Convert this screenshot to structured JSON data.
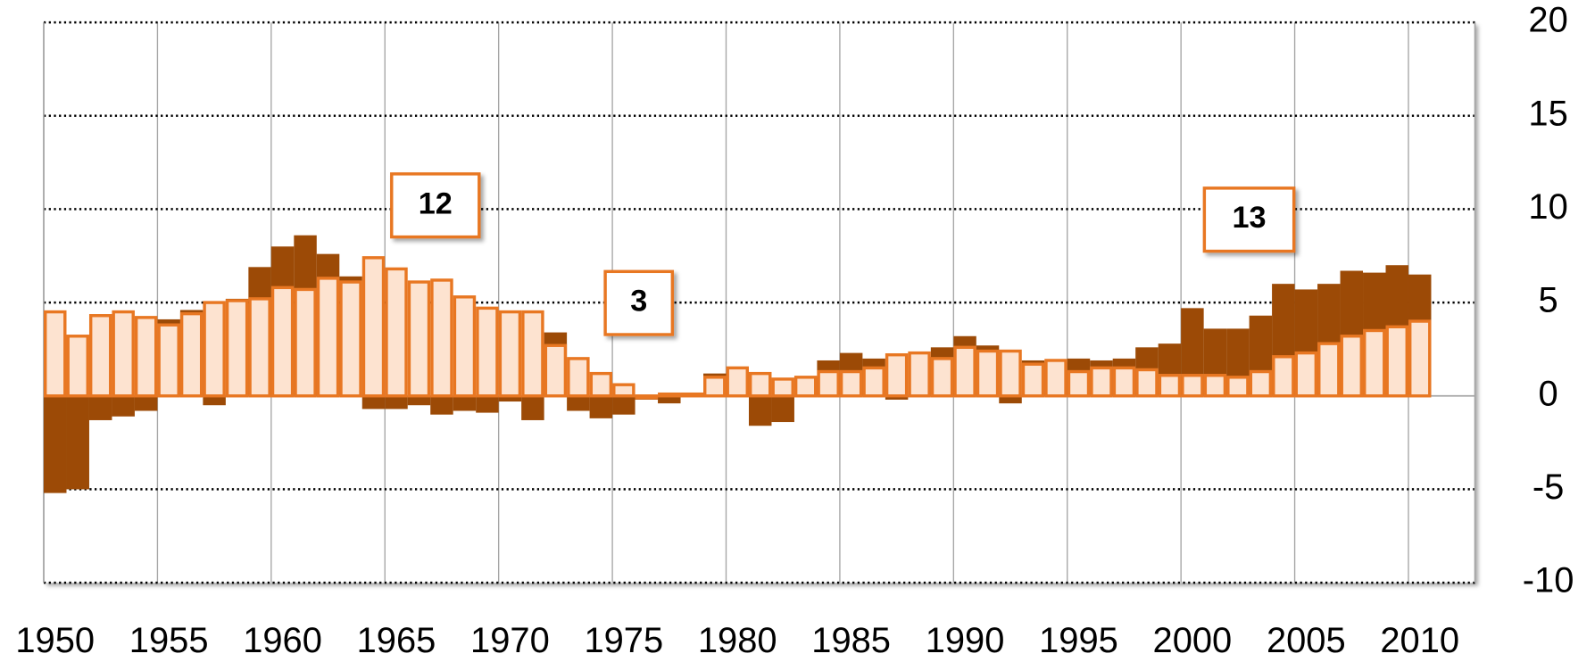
{
  "chart_data": {
    "type": "bar",
    "categories": [
      "1950",
      null,
      null,
      null,
      null,
      "1955",
      null,
      null,
      null,
      null,
      "1960",
      null,
      null,
      null,
      null,
      "1965",
      null,
      null,
      null,
      null,
      "1970",
      null,
      null,
      null,
      null,
      "1975",
      null,
      null,
      null,
      null,
      "1980",
      null,
      null,
      null,
      null,
      "1985",
      null,
      null,
      null,
      null,
      "1990",
      null,
      null,
      null,
      null,
      "1995",
      null,
      null,
      null,
      null,
      "2000",
      null,
      null,
      null,
      null,
      "2005",
      null,
      null,
      null,
      null,
      "2010"
    ],
    "series": [
      {
        "color": "#9c4a06",
        "values": [
          -5.2,
          -5.0,
          -1.3,
          -1.1,
          -0.8,
          4.1,
          4.6,
          -0.5,
          5.2,
          6.9,
          8.0,
          8.6,
          7.6,
          6.4,
          -0.7,
          -0.7,
          -0.5,
          -1.0,
          -0.8,
          -0.9,
          -0.3,
          -1.3,
          3.4,
          -0.8,
          -1.2,
          -1.0,
          -0.2,
          -0.4,
          0.1,
          1.2,
          1.5,
          -1.6,
          -1.4,
          1.0,
          1.9,
          2.3,
          2.0,
          -0.2,
          2.1,
          2.6,
          3.2,
          2.7,
          -0.4,
          1.9,
          1.8,
          2.0,
          1.9,
          2.0,
          2.6,
          2.8,
          4.7,
          3.6,
          3.6,
          4.3,
          6.0,
          5.7,
          6.0,
          6.7,
          6.6,
          7.0,
          6.5
        ]
      },
      {
        "color": "#fde3d0",
        "edge_color": "#e87722",
        "values": [
          4.5,
          3.2,
          4.3,
          4.5,
          4.2,
          3.8,
          4.4,
          5.0,
          5.1,
          5.2,
          5.8,
          5.7,
          6.3,
          6.1,
          7.4,
          6.8,
          6.1,
          6.2,
          5.3,
          4.7,
          4.5,
          4.5,
          2.7,
          2.0,
          1.2,
          0.6,
          -0.1,
          0.1,
          0.1,
          1.0,
          1.5,
          1.2,
          0.9,
          1.0,
          1.3,
          1.3,
          1.5,
          2.2,
          2.3,
          2.0,
          2.6,
          2.4,
          2.4,
          1.7,
          1.9,
          1.3,
          1.5,
          1.5,
          1.4,
          1.1,
          1.1,
          1.1,
          1.0,
          1.3,
          2.1,
          2.3,
          2.8,
          3.2,
          3.5,
          3.7,
          4.0
        ]
      }
    ],
    "ylim": [
      -10,
      20
    ],
    "yticks": [
      -10,
      -5,
      0,
      5,
      10,
      15,
      20
    ],
    "grid": true,
    "y_axis_side": "right",
    "annotations": [
      {
        "text": "12"
      },
      {
        "text": "3"
      },
      {
        "text": "13"
      }
    ]
  }
}
